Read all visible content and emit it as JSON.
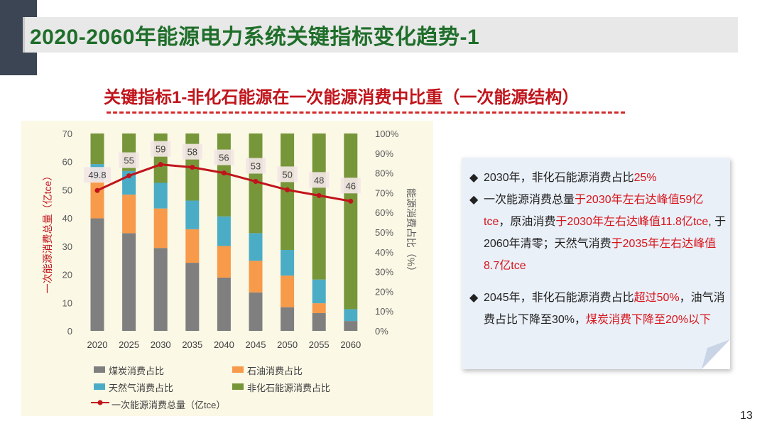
{
  "slide": {
    "title": "2020-2060年能源电力系统关键指标变化趋势-1",
    "subtitle": "关键指标1-非化石能源在一次能源消费中比重（一次能源结构）",
    "page_number": "13"
  },
  "colors": {
    "coal": "#7f7f7f",
    "oil": "#f79a4a",
    "gas": "#4bacc6",
    "nonfossil": "#77963a",
    "total_line": "#c0141b",
    "title_green": "#1f6e2a"
  },
  "notes": {
    "b1": {
      "p1": "2030年，非化石能源消费占比",
      "r1": "25%"
    },
    "b2": {
      "p1": "一次能源消费总量",
      "r1": "于2030年左右达峰值59亿tce",
      "p2": "，原油消费",
      "r2": "于2030年左右达峰值11.8亿tce",
      "p3": ", 于2060年清零；天然气消费",
      "r3": "于2035年左右达峰值8.7亿tce"
    },
    "b3": {
      "p1": "2045年，非化石能源消费占比",
      "r1": "超过50%",
      "p2": "，油气消费占比下降至30%，",
      "r2": "煤炭消费下降至20%以下"
    },
    "bullet_icon": "diamond-bullet"
  },
  "chart_data": {
    "type": "bar",
    "stacked": true,
    "categories": [
      "2020",
      "2025",
      "2030",
      "2035",
      "2040",
      "2045",
      "2050",
      "2055",
      "2060"
    ],
    "series": [
      {
        "name": "煤炭消费占比",
        "axis": "right",
        "values": [
          57,
          49.5,
          42,
          34.5,
          27,
          19.5,
          12,
          9,
          5
        ]
      },
      {
        "name": "石油消费占比",
        "axis": "right",
        "values": [
          19,
          19.5,
          20,
          17,
          16,
          16,
          16,
          5,
          0
        ]
      },
      {
        "name": "天然气消费占比",
        "axis": "right",
        "values": [
          8.5,
          12,
          13,
          14.5,
          15,
          14,
          13,
          12,
          6
        ]
      },
      {
        "name": "非化石能源消费占比",
        "axis": "right",
        "values": [
          15.5,
          19,
          25,
          34,
          42,
          50.5,
          59,
          74,
          89
        ]
      }
    ],
    "line_series": {
      "name": "一次能源消费总量（亿tce）",
      "axis": "left",
      "values": [
        49.8,
        55,
        59,
        58,
        56,
        53,
        50,
        48,
        46
      ],
      "labels": [
        "49.8",
        "55",
        "59",
        "58",
        "56",
        "53",
        "50",
        "48",
        "46"
      ]
    },
    "left_axis": {
      "label": "一次能源消费总量（亿tce）",
      "ylim": [
        0,
        70
      ],
      "ticks": [
        "0",
        "10",
        "20",
        "30",
        "40",
        "50",
        "60",
        "70"
      ]
    },
    "right_axis": {
      "label": "能源消费占比（%）",
      "ylim": [
        0,
        100
      ],
      "ticks": [
        "0%",
        "10%",
        "20%",
        "30%",
        "40%",
        "50%",
        "60%",
        "70%",
        "80%",
        "90%",
        "100%"
      ]
    },
    "legend_position": "bottom"
  }
}
